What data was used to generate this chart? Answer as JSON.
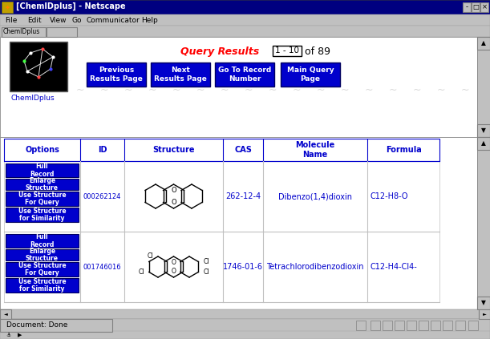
{
  "title": "[ChemIDplus] - Netscape",
  "bg_color": "#c0c0c0",
  "titlebar_color": "#000080",
  "titlebar_text_color": "#ffffff",
  "menu_items": [
    "File",
    "Edit",
    "View",
    "Go",
    "Communicator",
    "Help"
  ],
  "query_results_label": "Query Results",
  "query_results_range": "1 - 10",
  "query_results_of": "of 89",
  "query_color": "#ff0000",
  "nav_button_color": "#0000cc",
  "nav_button_text_color": "#ffffff",
  "header_color": "#0000cc",
  "col_headers": [
    "Options",
    "ID",
    "Structure",
    "CAS",
    "Molecule\nName",
    "Formula"
  ],
  "row1_id": "000262124",
  "row1_cas": "262-12-4",
  "row1_name": "Dibenzo(1,4)dioxin",
  "row1_formula": "C12-H8-O",
  "row2_id": "001746016",
  "row2_cas": "1746-01-6",
  "row2_name": "Tetrachlorodibenzodioxin",
  "row2_formula": "C12-H4-Cl4-",
  "data_color": "#0000cc",
  "button_labels": [
    "Full\nRecord",
    "Enlarge\nStructure",
    "Use Structure\nFor Query",
    "Use Structure\nfor Similarity"
  ],
  "status_bar_text": "Document: Done",
  "chemidplus_label": "ChemIDplus"
}
